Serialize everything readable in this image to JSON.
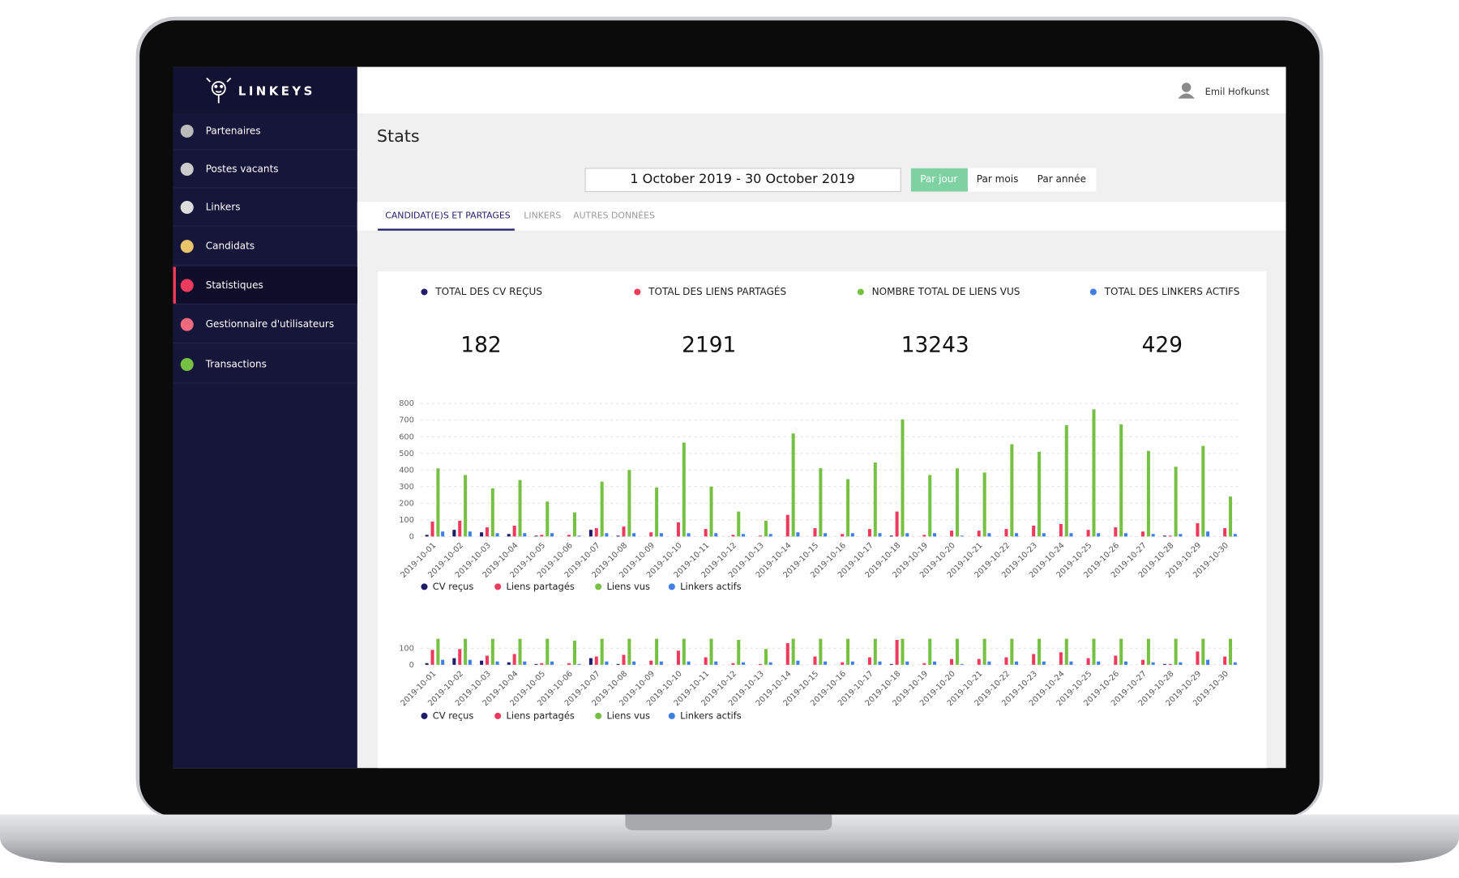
{
  "sidebar": {
    "brand": "LINKEYS",
    "items": [
      "Partenaires",
      "Postes vacants",
      "Linkers",
      "Candidats",
      "Statistiques",
      "Gestionnaire d'utilisateurs",
      "Transactions"
    ]
  },
  "header": {
    "user": "Emil Hofkunst"
  },
  "page": {
    "title": "Stats",
    "date_range": "1 October 2019 - 30 October 2019",
    "periods": [
      "Par jour",
      "Par mois",
      "Par année"
    ],
    "tabs": [
      "CANDIDAT(E)S ET PARTAGES",
      "LINKERS",
      "AUTRES DONNÉES"
    ]
  },
  "stats": [
    {
      "label": "TOTAL DES CV REÇUS",
      "value": 182,
      "color": "#1f1d6b"
    },
    {
      "label": "TOTAL DES LIENS PARTAGÉS",
      "value": 2191,
      "color": "#ee3a5c"
    },
    {
      "label": "NOMBRE TOTAL DE LIENS VUS",
      "value": 13243,
      "color": "#76c043"
    },
    {
      "label": "TOTAL DES LINKERS ACTIFS",
      "value": 429,
      "color": "#3e7ee6"
    }
  ],
  "chart_data": {
    "type": "bar",
    "categories": [
      "2019-10-01",
      "2019-10-02",
      "2019-10-03",
      "2019-10-04",
      "2019-10-05",
      "2019-10-06",
      "2019-10-07",
      "2019-10-08",
      "2019-10-09",
      "2019-10-10",
      "2019-10-11",
      "2019-10-12",
      "2019-10-13",
      "2019-10-14",
      "2019-10-15",
      "2019-10-16",
      "2019-10-17",
      "2019-10-18",
      "2019-10-19",
      "2019-10-20",
      "2019-10-21",
      "2019-10-22",
      "2019-10-23",
      "2019-10-24",
      "2019-10-25",
      "2019-10-26",
      "2019-10-27",
      "2019-10-28",
      "2019-10-29",
      "2019-10-30"
    ],
    "series": [
      {
        "name": "CV reçus",
        "color": "#1f1d6b",
        "values": [
          10,
          40,
          25,
          15,
          5,
          0,
          40,
          5,
          0,
          0,
          0,
          0,
          0,
          0,
          0,
          0,
          0,
          5,
          0,
          0,
          0,
          0,
          0,
          0,
          0,
          0,
          0,
          5,
          0,
          0
        ]
      },
      {
        "name": "Liens partagés",
        "color": "#ee3a5c",
        "values": [
          90,
          95,
          55,
          65,
          10,
          10,
          50,
          60,
          25,
          85,
          45,
          10,
          5,
          130,
          50,
          15,
          45,
          150,
          10,
          35,
          35,
          45,
          65,
          75,
          40,
          55,
          30,
          5,
          80,
          50
        ]
      },
      {
        "name": "Liens vus",
        "color": "#76c043",
        "values": [
          410,
          370,
          290,
          340,
          210,
          145,
          330,
          400,
          295,
          565,
          300,
          150,
          95,
          620,
          410,
          345,
          445,
          705,
          370,
          410,
          385,
          555,
          510,
          670,
          765,
          675,
          515,
          420,
          545,
          240
        ]
      },
      {
        "name": "Linkers actifs",
        "color": "#3e7ee6",
        "values": [
          30,
          30,
          20,
          20,
          20,
          5,
          20,
          20,
          20,
          20,
          20,
          15,
          15,
          25,
          20,
          20,
          20,
          20,
          20,
          5,
          20,
          20,
          20,
          20,
          20,
          20,
          15,
          15,
          30,
          15
        ]
      }
    ],
    "ylim": [
      0,
      800
    ],
    "yticks": [
      0,
      100,
      200,
      300,
      400,
      500,
      600,
      700,
      800
    ],
    "grid": true
  }
}
